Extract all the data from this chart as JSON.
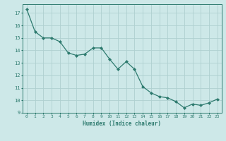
{
  "x": [
    0,
    1,
    2,
    3,
    4,
    5,
    6,
    7,
    8,
    9,
    10,
    11,
    12,
    13,
    14,
    15,
    16,
    17,
    18,
    19,
    20,
    21,
    22,
    23
  ],
  "y": [
    17.3,
    15.5,
    15.0,
    15.0,
    14.7,
    13.8,
    13.6,
    13.7,
    14.2,
    14.2,
    13.3,
    12.5,
    13.1,
    12.5,
    11.1,
    10.6,
    10.3,
    10.2,
    9.9,
    9.4,
    9.7,
    9.6,
    9.8,
    10.1
  ],
  "xlabel": "Humidex (Indice chaleur)",
  "xlim": [
    -0.5,
    23.5
  ],
  "ylim": [
    9,
    17.7
  ],
  "yticks": [
    9,
    10,
    11,
    12,
    13,
    14,
    15,
    16,
    17
  ],
  "xticks": [
    0,
    1,
    2,
    3,
    4,
    5,
    6,
    7,
    8,
    9,
    10,
    11,
    12,
    13,
    14,
    15,
    16,
    17,
    18,
    19,
    20,
    21,
    22,
    23
  ],
  "line_color": "#2d7a6e",
  "marker_color": "#2d7a6e",
  "bg_color": "#cde8e8",
  "grid_color": "#afd0d0",
  "label_color": "#2d7a6e",
  "tick_color": "#2d7a6e",
  "spine_color": "#2d7a6e"
}
